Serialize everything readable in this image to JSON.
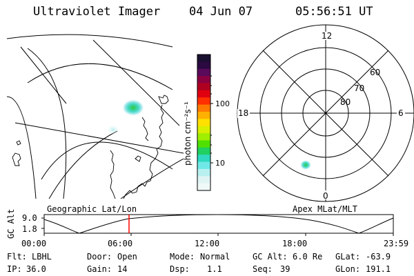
{
  "header": {
    "instrument": "Ultraviolet Imager",
    "date": "04 Jun 07",
    "time": "05:56:51 UT"
  },
  "colorbar": {
    "unit_label": "photon cm⁻²s⁻¹",
    "ticks": [
      "100",
      "10"
    ],
    "colors": [
      "#1a1030",
      "#2a0a40",
      "#5a0a5a",
      "#8a0040",
      "#b00020",
      "#e00010",
      "#ff3000",
      "#ff7a00",
      "#ffb000",
      "#ffe000",
      "#d8f000",
      "#a0ee00",
      "#50e000",
      "#20d060",
      "#30d8c0",
      "#70e8e8",
      "#b8f0f0",
      "#e0f4f4",
      "#f0f8f8"
    ]
  },
  "geo_map": {
    "label": "Geographic Lat/Lon"
  },
  "polar_plot": {
    "label": "Apex MLat/MLT",
    "mlt_labels": {
      "top": "12",
      "left": "18",
      "right": "6",
      "bottom": "0"
    },
    "lat_labels": [
      "60",
      "70",
      "80"
    ]
  },
  "altitude_track": {
    "axis_title": "GC Alt",
    "y_ticks": [
      "9.0",
      "1.8"
    ],
    "x_ticks": [
      "00:00",
      "06:00",
      "12:00",
      "18:00",
      "23:59"
    ],
    "marker_color": "#ff0000"
  },
  "status": {
    "row1": [
      {
        "label": "Flt:",
        "value": "LBHL"
      },
      {
        "label": "Door:",
        "value": "Open"
      },
      {
        "label": "Mode:",
        "value": "Normal"
      },
      {
        "label": "GC Alt:",
        "value": "6.0 Re"
      },
      {
        "label": "GLat:",
        "value": "-63.9"
      }
    ],
    "row2": [
      {
        "label": "IP:",
        "value": "36.0"
      },
      {
        "label": "Gain:",
        "value": "14"
      },
      {
        "label": "Dsp:",
        "value": "1.1"
      },
      {
        "label": "Seq:",
        "value": "39"
      },
      {
        "label": "GLon:",
        "value": "191.1"
      }
    ]
  }
}
